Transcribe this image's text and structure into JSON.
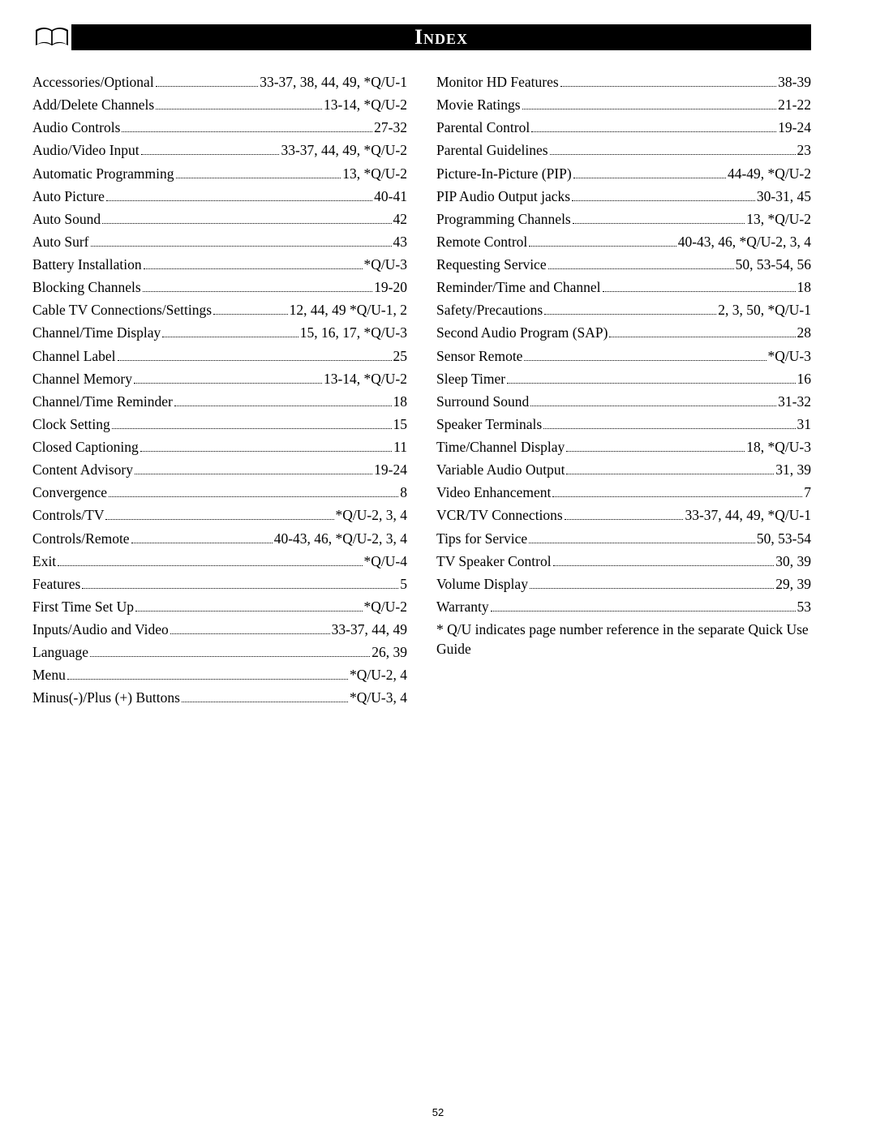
{
  "header": {
    "title": "Index"
  },
  "footnote": "* Q/U indicates page number reference in the separate Quick Use Guide",
  "page_number": "52",
  "left_column": [
    {
      "term": "Accessories/Optional",
      "page": " 33-37, 38, 44, 49, *Q/U-1"
    },
    {
      "term": "Add/Delete Channels ",
      "page": "13-14, *Q/U-2"
    },
    {
      "term": "Audio Controls ",
      "page": "27-32"
    },
    {
      "term": "Audio/Video Input ",
      "page": "33-37, 44, 49, *Q/U-2"
    },
    {
      "term": "Automatic Programming ",
      "page": "13, *Q/U-2"
    },
    {
      "term": "Auto Picture",
      "page": "40-41"
    },
    {
      "term": "Auto Sound ",
      "page": "42"
    },
    {
      "term": "Auto Surf ",
      "page": "43"
    },
    {
      "term": "Battery Installation ",
      "page": "*Q/U-3"
    },
    {
      "term": "Blocking Channels ",
      "page": "19-20"
    },
    {
      "term": "Cable TV Connections/Settings ",
      "page": "12, 44, 49 *Q/U-1, 2"
    },
    {
      "term": "Channel/Time Display",
      "page": "15, 16, 17, *Q/U-3"
    },
    {
      "term": "Channel Label",
      "page": "25"
    },
    {
      "term": "Channel Memory",
      "page": "13-14, *Q/U-2"
    },
    {
      "term": "Channel/Time Reminder",
      "page": "18"
    },
    {
      "term": "Clock Setting ",
      "page": "15"
    },
    {
      "term": "Closed Captioning ",
      "page": "11"
    },
    {
      "term": "Content Advisory ",
      "page": "19-24"
    },
    {
      "term": "Convergence ",
      "page": "8"
    },
    {
      "term": "Controls/TV",
      "page": "*Q/U-2, 3, 4"
    },
    {
      "term": "Controls/Remote ",
      "page": "40-43, 46, *Q/U-2, 3, 4"
    },
    {
      "term": "Exit ",
      "page": "*Q/U-4"
    },
    {
      "term": "Features",
      "page": "5"
    },
    {
      "term": "First Time Set Up ",
      "page": "*Q/U-2"
    },
    {
      "term": "Inputs/Audio and Video ",
      "page": "33-37, 44, 49"
    },
    {
      "term": "Language",
      "page": "26, 39"
    },
    {
      "term": "Menu",
      "page": "*Q/U-2, 4"
    },
    {
      "term": "Minus(-)/Plus (+) Buttons",
      "page": "*Q/U-3, 4"
    }
  ],
  "right_column": [
    {
      "term": "Monitor HD Features",
      "page": "38-39"
    },
    {
      "term": "Movie Ratings ",
      "page": "21-22"
    },
    {
      "term": "Parental Control",
      "page": "19-24"
    },
    {
      "term": "Parental Guidelines",
      "page": "23"
    },
    {
      "term": "Picture-In-Picture (PIP)",
      "page": "44-49, *Q/U-2"
    },
    {
      "term": "PIP Audio Output jacks",
      "page": "30-31, 45"
    },
    {
      "term": "Programming Channels ",
      "page": "13, *Q/U-2"
    },
    {
      "term": "Remote Control ",
      "page": "40-43, 46, *Q/U-2, 3, 4"
    },
    {
      "term": "Requesting Service ",
      "page": " 50, 53-54, 56"
    },
    {
      "term": "Reminder/Time and Channel",
      "page": "18"
    },
    {
      "term": "Safety/Precautions ",
      "page": "2, 3, 50, *Q/U-1"
    },
    {
      "term": "Second Audio Program (SAP)",
      "page": "28"
    },
    {
      "term": "Sensor Remote",
      "page": "*Q/U-3"
    },
    {
      "term": "Sleep Timer",
      "page": "16"
    },
    {
      "term": "Surround Sound",
      "page": "31-32"
    },
    {
      "term": "Speaker Terminals ",
      "page": "31"
    },
    {
      "term": "Time/Channel Display",
      "page": "18, *Q/U-3"
    },
    {
      "term": "Variable Audio Output ",
      "page": "31, 39"
    },
    {
      "term": "Video Enhancement",
      "page": "7"
    },
    {
      "term": "VCR/TV Connections ",
      "page": "33-37, 44, 49, *Q/U-1"
    },
    {
      "term": "Tips for Service ",
      "page": "50, 53-54"
    },
    {
      "term": "TV Speaker Control",
      "page": "30, 39"
    },
    {
      "term": "Volume Display",
      "page": "29, 39"
    },
    {
      "term": "Warranty ",
      "page": "53"
    }
  ],
  "colors": {
    "header_bg": "#000000",
    "header_fg": "#ffffff",
    "text": "#000000",
    "page_bg": "#ffffff"
  }
}
